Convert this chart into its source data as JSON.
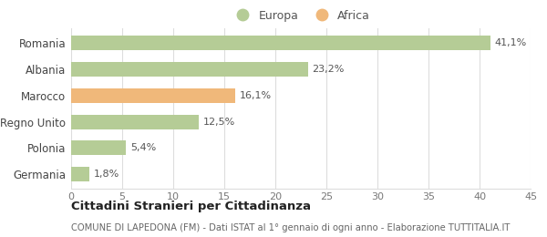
{
  "categories": [
    "Germania",
    "Polonia",
    "Regno Unito",
    "Marocco",
    "Albania",
    "Romania"
  ],
  "values": [
    1.8,
    5.4,
    12.5,
    16.1,
    23.2,
    41.1
  ],
  "labels": [
    "1,8%",
    "5,4%",
    "12,5%",
    "16,1%",
    "23,2%",
    "41,1%"
  ],
  "colors": [
    "#b5cc96",
    "#b5cc96",
    "#b5cc96",
    "#f0b87a",
    "#b5cc96",
    "#b5cc96"
  ],
  "legend_items": [
    {
      "label": "Europa",
      "color": "#b5cc96"
    },
    {
      "label": "Africa",
      "color": "#f0b87a"
    }
  ],
  "xlim": [
    0,
    45
  ],
  "xticks": [
    0,
    5,
    10,
    15,
    20,
    25,
    30,
    35,
    40,
    45
  ],
  "title": "Cittadini Stranieri per Cittadinanza",
  "subtitle": "COMUNE DI LAPEDONA (FM) - Dati ISTAT al 1° gennaio di ogni anno - Elaborazione TUTTITALIA.IT",
  "bg_color": "#ffffff",
  "grid_color": "#dddddd"
}
